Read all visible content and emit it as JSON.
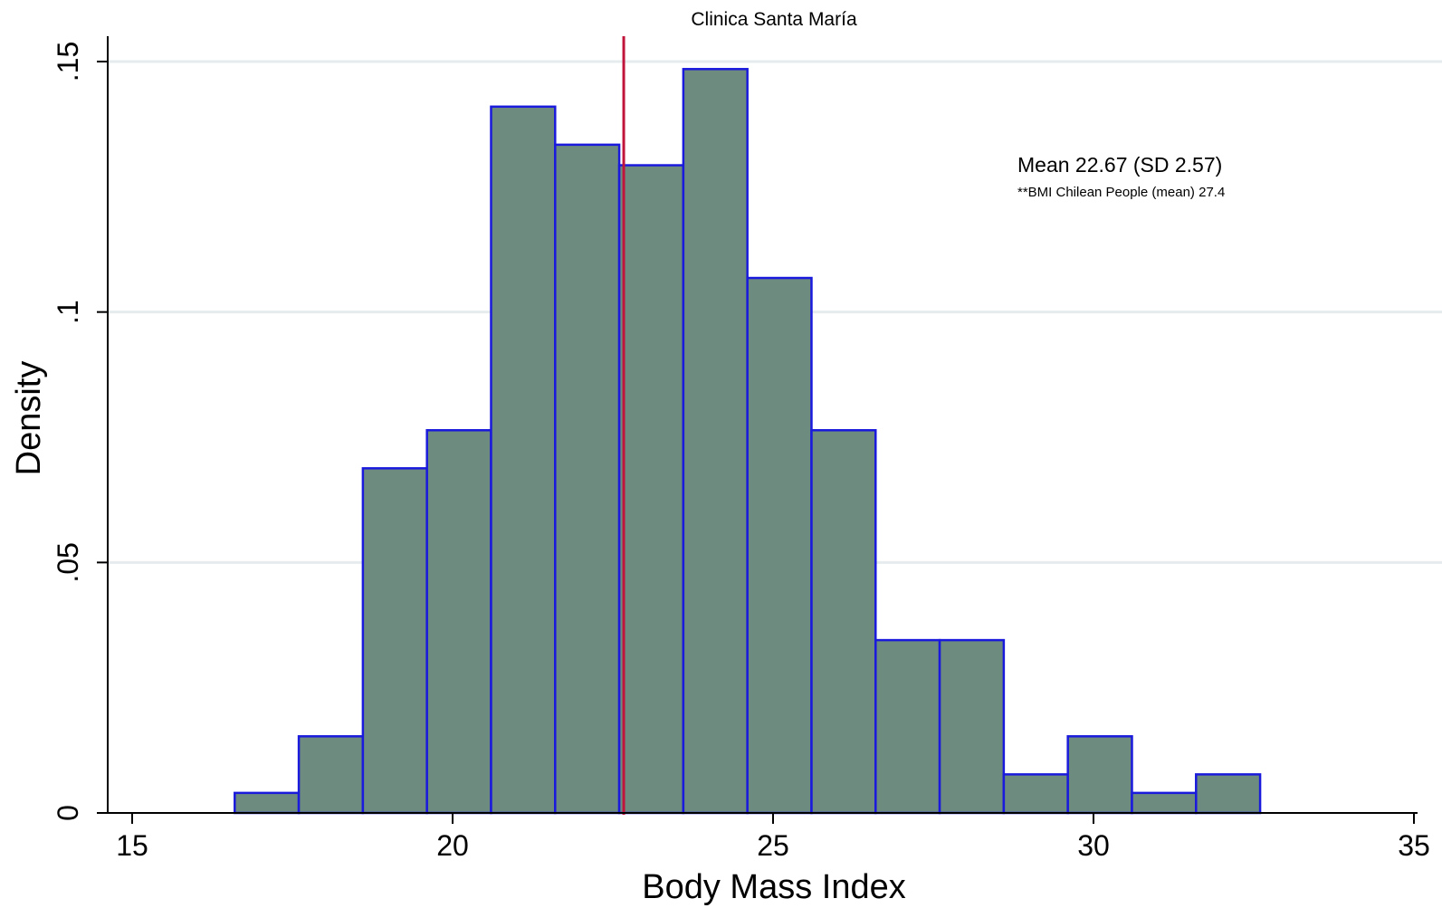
{
  "chart_data": {
    "type": "bar",
    "title": "Clinica Santa María",
    "xlabel": "Body Mass Index",
    "ylabel": "Density",
    "xlim": [
      15,
      35
    ],
    "ylim": [
      0,
      0.15
    ],
    "x_ticks": [
      15,
      20,
      25,
      30,
      35
    ],
    "x_tick_labels": [
      "15",
      "20",
      "25",
      "30",
      "35"
    ],
    "y_ticks": [
      0,
      0.05,
      0.1,
      0.15
    ],
    "y_tick_labels": [
      "0",
      ".05",
      ".1",
      ".15"
    ],
    "grid": "horizontal",
    "bin_width": 1,
    "bins": [
      {
        "start": 16.6,
        "value": 0.004
      },
      {
        "start": 17.6,
        "value": 0.0153
      },
      {
        "start": 18.6,
        "value": 0.0688
      },
      {
        "start": 19.6,
        "value": 0.0764
      },
      {
        "start": 20.6,
        "value": 0.141
      },
      {
        "start": 21.6,
        "value": 0.1334
      },
      {
        "start": 22.6,
        "value": 0.1293
      },
      {
        "start": 23.6,
        "value": 0.1485
      },
      {
        "start": 24.6,
        "value": 0.1068
      },
      {
        "start": 25.6,
        "value": 0.0764
      },
      {
        "start": 26.6,
        "value": 0.0345
      },
      {
        "start": 27.6,
        "value": 0.0345
      },
      {
        "start": 28.6,
        "value": 0.0077
      },
      {
        "start": 29.6,
        "value": 0.0153
      },
      {
        "start": 30.6,
        "value": 0.004
      },
      {
        "start": 31.6,
        "value": 0.0077
      }
    ],
    "reference_line": {
      "x": 22.67,
      "color": "#c0143c"
    },
    "annotations": [
      "Mean 22.67 (SD 2.57)",
      "**BMI Chilean People (mean) 27.4"
    ],
    "colors": {
      "bar_fill": "#6e8b80",
      "bar_edge": "#1a1adc",
      "grid": "#e6ecee",
      "axis": "#000000"
    }
  }
}
